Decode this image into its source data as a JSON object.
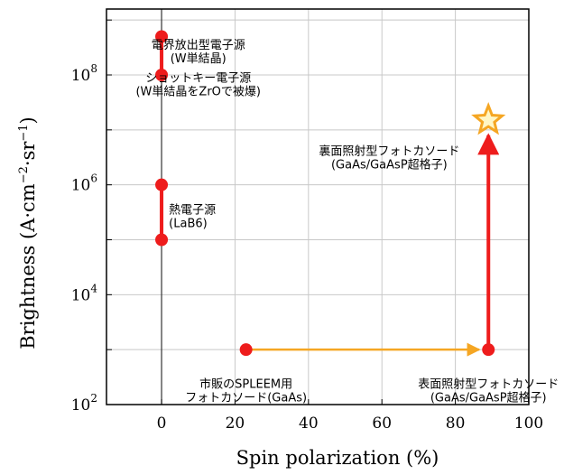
{
  "chart_data": {
    "type": "scatter",
    "title": "",
    "xlabel": "Spin polarization (%)",
    "ylabel_parts": {
      "main": "Brightness (A·cm",
      "exp1": "−2",
      "mid": "·sr",
      "exp2": "−1",
      "end": ")"
    },
    "xlim": [
      -15,
      100
    ],
    "ylim_log10": [
      2,
      9.2
    ],
    "y_scale": "log",
    "grid": true,
    "x_ticks": [
      0,
      20,
      40,
      60,
      80,
      100
    ],
    "y_ticks": [
      {
        "base": "10",
        "exp": "2",
        "value": 100
      },
      {
        "base": "10",
        "exp": "4",
        "value": 10000
      },
      {
        "base": "10",
        "exp": "6",
        "value": 1000000
      },
      {
        "base": "10",
        "exp": "8",
        "value": 100000000
      }
    ],
    "points": [
      {
        "id": "field-emission-top",
        "x": 0,
        "y": 500000000,
        "shape": "circle",
        "color": "#ee1c1c"
      },
      {
        "id": "schottky",
        "x": 0,
        "y": 100000000,
        "shape": "circle",
        "color": "#ee1c1c"
      },
      {
        "id": "thermionic-top",
        "x": 0,
        "y": 1000000,
        "shape": "circle",
        "color": "#ee1c1c"
      },
      {
        "id": "thermionic-bottom",
        "x": 0,
        "y": 100000,
        "shape": "circle",
        "color": "#ee1c1c"
      },
      {
        "id": "spleem",
        "x": 23,
        "y": 1000,
        "shape": "circle",
        "color": "#ee1c1c"
      },
      {
        "id": "front-illuminated",
        "x": 89,
        "y": 1000,
        "shape": "circle",
        "color": "#ee1c1c"
      },
      {
        "id": "back-illuminated",
        "x": 89,
        "y": 15000000,
        "shape": "star",
        "color": "#f5a623"
      }
    ],
    "ranges": [
      {
        "x": 0,
        "y1": 100000000,
        "y2": 500000000,
        "color": "#ee1c1c"
      },
      {
        "x": 0,
        "y1": 100000,
        "y2": 1000000,
        "color": "#ee1c1c"
      }
    ],
    "arrows": [
      {
        "x1": 23,
        "y1": 1000,
        "x2": 86.5,
        "y2": 1000,
        "color": "#f5a623"
      },
      {
        "x1": 89,
        "y1": 1000,
        "x2": 89,
        "y2": 8000000,
        "color": "#ee1c1c"
      }
    ],
    "annotations": [
      {
        "id": "field-emission",
        "lines": [
          "電界放出型電子源",
          "(W単結晶)"
        ],
        "x": 10,
        "y": 300000000,
        "align": "middle"
      },
      {
        "id": "schottky",
        "lines": [
          "ショットキー電子源",
          "(W単結晶をZrOで被爆)"
        ],
        "x": 10,
        "y": 75000000,
        "align": "middle"
      },
      {
        "id": "thermionic",
        "lines": [
          "熱電子源",
          "(LaB6)"
        ],
        "x": 2,
        "y": 300000,
        "align": "start"
      },
      {
        "id": "spleem",
        "lines": [
          "市販のSPLEEM用",
          "フォトカソード(GaAs)"
        ],
        "x": 23,
        "y": 200,
        "align": "middle"
      },
      {
        "id": "front",
        "lines": [
          "表面照射型フォトカソード",
          "(GaAs/GaAsP超格子)"
        ],
        "x": 89,
        "y": 200,
        "align": "middle"
      },
      {
        "id": "back",
        "lines": [
          "裏面照射型フォトカソード",
          "(GaAs/GaAsP超格子)"
        ],
        "x": 62,
        "y": 3500000,
        "align": "middle"
      }
    ]
  }
}
